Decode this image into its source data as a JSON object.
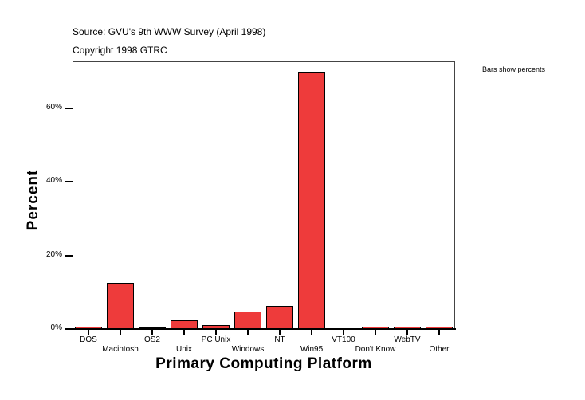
{
  "header": {
    "source": "Source: GVU's 9th WWW Survey (April 1998)",
    "copyright": "Copyright 1998 GTRC",
    "note": "Bars show percents"
  },
  "chart_data": {
    "type": "bar",
    "title": "Source: GVU's 9th WWW Survey (April 1998)",
    "subtitle": "Copyright 1998 GTRC",
    "annotation": "Bars show percents",
    "xlabel": "Primary Computing Platform",
    "ylabel": "Percent",
    "categories": [
      "DOS",
      "Macintosh",
      "OS2",
      "Unix",
      "PC Unix",
      "Windows",
      "NT",
      "Win95",
      "VT100",
      "Don't Know",
      "WebTV",
      "Other"
    ],
    "values": [
      0.6,
      12.6,
      0.2,
      2.4,
      1.1,
      4.8,
      6.3,
      70.0,
      0.0,
      0.6,
      0.6,
      0.6
    ],
    "yticks": [
      "0%",
      "20%",
      "40%",
      "60%"
    ],
    "ylim": [
      0,
      72.8
    ],
    "grid": false,
    "bar_color": "#ee3b3b"
  }
}
